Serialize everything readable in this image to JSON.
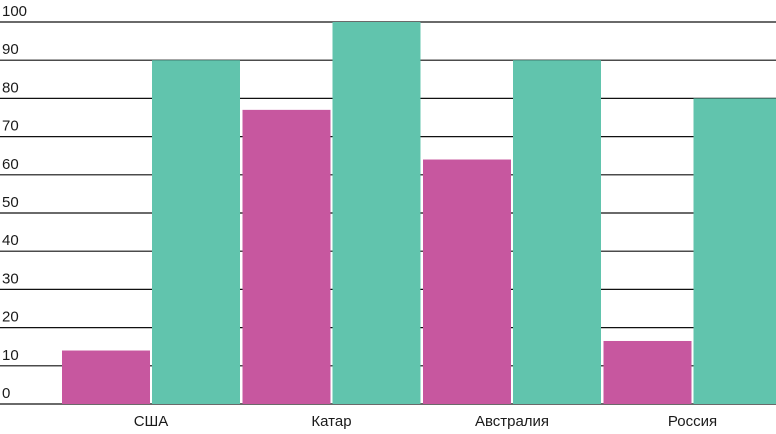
{
  "chart_data": {
    "type": "bar",
    "title": "",
    "xlabel": "",
    "ylabel": "",
    "categories": [
      "США",
      "Катар",
      "Австралия",
      "Россия"
    ],
    "series": [
      {
        "values": [
          14,
          77,
          64,
          16.5
        ],
        "color": "#c7579f"
      },
      {
        "values": [
          90,
          100,
          90,
          80
        ],
        "color": "#61c4ad"
      }
    ],
    "ylim": [
      0,
      100
    ],
    "yticks": [
      "0",
      "10",
      "20",
      "30",
      "40",
      "50",
      "60",
      "70",
      "80",
      "90",
      "100"
    ],
    "grid": true,
    "legend": "none"
  }
}
